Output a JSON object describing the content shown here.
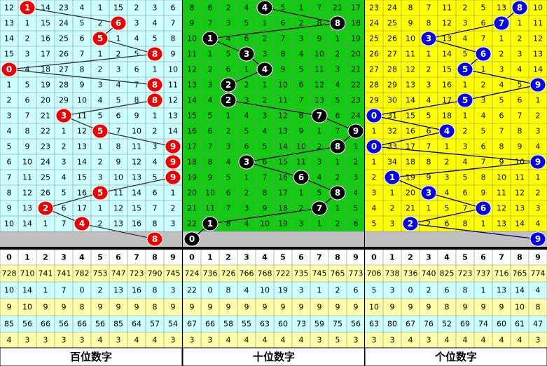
{
  "columns": [
    0,
    1,
    2,
    3,
    4,
    5,
    6,
    7,
    8,
    9
  ],
  "panels": [
    {
      "label": "百位数字",
      "rows": [
        {
          "draw": 1,
          "misses": [
            12,
            null,
            14,
            23,
            4,
            1,
            15,
            2,
            3,
            6
          ]
        },
        {
          "draw": 6,
          "misses": [
            13,
            1,
            15,
            24,
            5,
            2,
            null,
            3,
            4,
            7
          ]
        },
        {
          "draw": 5,
          "misses": [
            14,
            2,
            16,
            25,
            6,
            null,
            1,
            4,
            5,
            8
          ]
        },
        {
          "draw": 8,
          "misses": [
            15,
            3,
            17,
            26,
            7,
            1,
            2,
            5,
            null,
            9
          ]
        },
        {
          "draw": 0,
          "misses": [
            null,
            4,
            18,
            27,
            8,
            2,
            3,
            6,
            1,
            10
          ]
        },
        {
          "draw": 8,
          "misses": [
            1,
            5,
            19,
            28,
            9,
            3,
            4,
            7,
            null,
            11
          ]
        },
        {
          "draw": 8,
          "misses": [
            2,
            6,
            20,
            29,
            10,
            4,
            5,
            8,
            null,
            12
          ]
        },
        {
          "draw": 3,
          "misses": [
            3,
            7,
            21,
            null,
            11,
            5,
            6,
            9,
            1,
            13
          ]
        },
        {
          "draw": 5,
          "misses": [
            4,
            8,
            22,
            1,
            12,
            null,
            7,
            10,
            2,
            14
          ]
        },
        {
          "draw": 9,
          "misses": [
            5,
            9,
            23,
            2,
            13,
            1,
            8,
            11,
            3,
            null
          ]
        },
        {
          "draw": 9,
          "misses": [
            6,
            10,
            24,
            3,
            14,
            2,
            9,
            12,
            4,
            null
          ]
        },
        {
          "draw": 9,
          "misses": [
            7,
            11,
            25,
            4,
            15,
            3,
            10,
            13,
            5,
            null
          ]
        },
        {
          "draw": 5,
          "misses": [
            8,
            12,
            26,
            5,
            16,
            null,
            11,
            14,
            6,
            1
          ]
        },
        {
          "draw": 2,
          "misses": [
            9,
            13,
            null,
            6,
            17,
            1,
            12,
            15,
            7,
            2
          ]
        },
        {
          "draw": 4,
          "misses": [
            10,
            14,
            1,
            7,
            null,
            2,
            13,
            16,
            8,
            3
          ]
        }
      ],
      "latest": 8,
      "stats": [
        [
          728,
          710,
          741,
          741,
          782,
          753,
          747,
          723,
          790,
          745
        ],
        [
          10,
          14,
          1,
          7,
          0,
          2,
          13,
          16,
          8,
          3
        ],
        [
          9,
          10,
          9,
          9,
          8,
          9,
          9,
          9,
          8,
          9
        ],
        [
          85,
          56,
          66,
          56,
          66,
          56,
          85,
          64,
          57,
          54
        ],
        [
          4,
          3,
          3,
          3,
          3,
          4,
          3,
          4,
          4,
          3
        ]
      ]
    },
    {
      "label": "十位数字",
      "rows": [
        {
          "draw": 4,
          "misses": [
            8,
            6,
            2,
            4,
            null,
            5,
            1,
            7,
            21,
            17
          ]
        },
        {
          "draw": 8,
          "misses": [
            9,
            7,
            3,
            5,
            1,
            6,
            2,
            8,
            null,
            18
          ]
        },
        {
          "draw": 1,
          "misses": [
            10,
            null,
            4,
            6,
            2,
            7,
            3,
            9,
            1,
            19
          ]
        },
        {
          "draw": 3,
          "misses": [
            11,
            1,
            5,
            null,
            3,
            8,
            4,
            10,
            2,
            20
          ]
        },
        {
          "draw": 4,
          "misses": [
            12,
            2,
            6,
            1,
            null,
            9,
            5,
            11,
            3,
            21
          ]
        },
        {
          "draw": 2,
          "misses": [
            13,
            3,
            null,
            2,
            1,
            10,
            6,
            12,
            4,
            22
          ]
        },
        {
          "draw": 2,
          "misses": [
            14,
            4,
            null,
            3,
            2,
            11,
            7,
            13,
            5,
            23
          ]
        },
        {
          "draw": 7,
          "misses": [
            15,
            5,
            1,
            4,
            3,
            12,
            8,
            null,
            6,
            24
          ]
        },
        {
          "draw": 9,
          "misses": [
            16,
            6,
            2,
            5,
            4,
            13,
            9,
            1,
            7,
            null
          ]
        },
        {
          "draw": 8,
          "misses": [
            17,
            7,
            3,
            6,
            5,
            14,
            10,
            2,
            null,
            1
          ]
        },
        {
          "draw": 3,
          "misses": [
            18,
            8,
            4,
            null,
            6,
            15,
            11,
            3,
            1,
            2
          ]
        },
        {
          "draw": 6,
          "misses": [
            19,
            9,
            5,
            1,
            7,
            16,
            null,
            4,
            2,
            3
          ]
        },
        {
          "draw": 8,
          "misses": [
            20,
            10,
            6,
            2,
            8,
            17,
            1,
            5,
            null,
            4
          ]
        },
        {
          "draw": 7,
          "misses": [
            21,
            11,
            7,
            3,
            9,
            18,
            2,
            null,
            1,
            5
          ]
        },
        {
          "draw": 1,
          "misses": [
            22,
            null,
            8,
            4,
            10,
            19,
            3,
            1,
            2,
            6
          ]
        }
      ],
      "latest": 0,
      "stats": [
        [
          724,
          736,
          726,
          766,
          768,
          722,
          735,
          745,
          765,
          773
        ],
        [
          22,
          0,
          8,
          4,
          10,
          19,
          3,
          1,
          2,
          6
        ],
        [
          9,
          9,
          9,
          9,
          9,
          9,
          9,
          9,
          9,
          9
        ],
        [
          67,
          66,
          58,
          55,
          63,
          60,
          73,
          59,
          75,
          56
        ],
        [
          3,
          3,
          4,
          4,
          4,
          4,
          4,
          3,
          5,
          3
        ]
      ]
    },
    {
      "label": "个位数字",
      "rows": [
        {
          "draw": 8,
          "misses": [
            23,
            24,
            8,
            7,
            11,
            2,
            5,
            13,
            null,
            10
          ]
        },
        {
          "draw": 7,
          "misses": [
            24,
            25,
            9,
            8,
            12,
            3,
            6,
            null,
            1,
            11
          ]
        },
        {
          "draw": 3,
          "misses": [
            25,
            26,
            10,
            null,
            13,
            4,
            7,
            1,
            2,
            12
          ]
        },
        {
          "draw": 6,
          "misses": [
            26,
            27,
            11,
            1,
            14,
            5,
            null,
            2,
            3,
            13
          ]
        },
        {
          "draw": 5,
          "misses": [
            27,
            28,
            12,
            2,
            15,
            null,
            1,
            3,
            4,
            14
          ]
        },
        {
          "draw": 9,
          "misses": [
            28,
            29,
            13,
            3,
            16,
            1,
            2,
            4,
            5,
            null
          ]
        },
        {
          "draw": 5,
          "misses": [
            29,
            30,
            14,
            4,
            17,
            null,
            3,
            5,
            6,
            1
          ]
        },
        {
          "draw": 0,
          "misses": [
            null,
            31,
            15,
            5,
            18,
            1,
            4,
            6,
            7,
            2
          ]
        },
        {
          "draw": 4,
          "misses": [
            1,
            32,
            16,
            6,
            null,
            2,
            5,
            7,
            8,
            3
          ]
        },
        {
          "draw": 0,
          "misses": [
            null,
            33,
            17,
            7,
            1,
            3,
            6,
            8,
            9,
            4
          ]
        },
        {
          "draw": 9,
          "misses": [
            1,
            34,
            18,
            8,
            2,
            4,
            7,
            9,
            10,
            null
          ]
        },
        {
          "draw": 1,
          "misses": [
            2,
            null,
            19,
            9,
            3,
            5,
            8,
            10,
            11,
            1
          ]
        },
        {
          "draw": 3,
          "misses": [
            3,
            1,
            20,
            null,
            4,
            6,
            9,
            11,
            12,
            2
          ]
        },
        {
          "draw": 6,
          "misses": [
            4,
            2,
            21,
            1,
            5,
            7,
            null,
            12,
            13,
            3
          ]
        },
        {
          "draw": 2,
          "misses": [
            5,
            3,
            null,
            2,
            6,
            8,
            1,
            13,
            14,
            4
          ]
        }
      ],
      "latest": 9,
      "stats": [
        [
          706,
          738,
          736,
          740,
          825,
          723,
          737,
          716,
          765,
          774
        ],
        [
          5,
          3,
          0,
          2,
          6,
          8,
          1,
          13,
          14,
          4
        ],
        [
          10,
          9,
          9,
          9,
          8,
          9,
          9,
          9,
          10,
          8
        ],
        [
          63,
          80,
          67,
          76,
          52,
          69,
          74,
          60,
          61,
          47
        ],
        [
          3,
          3,
          4,
          3,
          4,
          4,
          4,
          4,
          4,
          3
        ]
      ]
    }
  ]
}
